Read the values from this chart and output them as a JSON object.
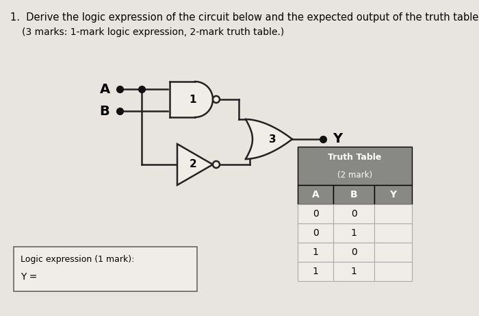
{
  "bg_color": "#e8e4df",
  "title_line1": "Derive the logic expression of the circuit below and the expected output of the truth table.",
  "title_line2": "(3 marks: 1-mark logic expression, 2-mark truth table.)",
  "gate1_label": "1",
  "gate2_label": "2",
  "gate3_label": "3",
  "input_A_label": "A",
  "input_B_label": "B",
  "output_label": "Y",
  "truth_table_title": "Truth Table",
  "truth_table_subtitle": "(2 mark)",
  "truth_table_headers": [
    "A",
    "B",
    "Y"
  ],
  "truth_table_rows": [
    [
      "0",
      "0",
      ""
    ],
    [
      "0",
      "1",
      ""
    ],
    [
      "1",
      "0",
      ""
    ],
    [
      "1",
      "1",
      ""
    ]
  ],
  "logic_box_label": "Logic expression (1 mark):",
  "logic_expr": "Y =",
  "table_header_bg": "#888884",
  "table_header_color": "#ffffff",
  "table_row_bg_even": "#f0ece8",
  "table_row_bg_odd": "#e8e4e0",
  "line_color": "#222222",
  "dot_color": "#111111",
  "box_bg": "#f0ece8",
  "box_border": "#666666",
  "gate_fill": "#f0ece8",
  "title_fontsize": 10.5,
  "subtitle_fontsize": 10
}
